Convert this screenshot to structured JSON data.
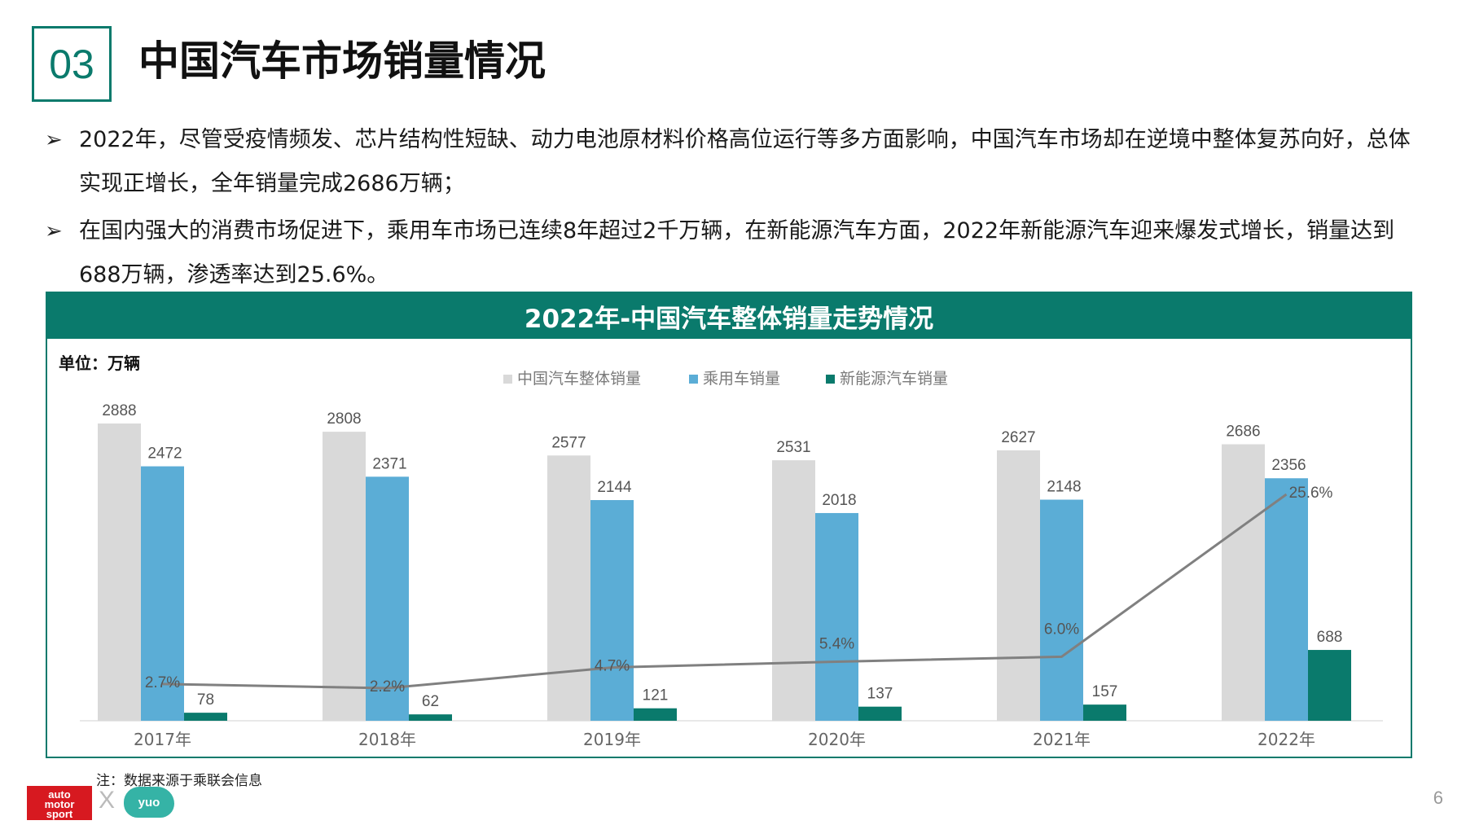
{
  "header": {
    "section_number": "03",
    "title": "中国汽车市场销量情况"
  },
  "bullets": [
    {
      "mark": "➢",
      "text": "2022年，尽管受疫情频发、芯片结构性短缺、动力电池原材料价格高位运行等多方面影响，中国汽车市场却在逆境中整体复苏向好，总体实现正增长，全年销量完成2686万辆；"
    },
    {
      "mark": "➢",
      "text": "在国内强大的消费市场促进下，乘用车市场已连续8年超过2千万辆，在新能源汽车方面，2022年新能源汽车迎来爆发式增长，销量达到688万辆，渗透率达到25.6%。"
    }
  ],
  "chart_title": "2022年-中国汽车整体销量走势情况",
  "unit": "单位：万辆",
  "note": "注：数据来源于乘联会信息",
  "logos": {
    "auto_motor_sport": "auto motor sport",
    "separator": "X",
    "partner": "yuo"
  },
  "page_number": "6",
  "colors": {
    "accent": "#0a7a6c",
    "total": "#d9d9d9",
    "passenger": "#5badd6",
    "nev": "#0a7a6c",
    "line": "#808080"
  },
  "chart_data": {
    "type": "bar",
    "categories": [
      "2017年",
      "2018年",
      "2019年",
      "2020年",
      "2021年",
      "2022年"
    ],
    "series": [
      {
        "name": "中国汽车整体销量",
        "values": [
          2888,
          2808,
          2577,
          2531,
          2627,
          2686
        ]
      },
      {
        "name": "乘用车销量",
        "values": [
          2472,
          2371,
          2144,
          2018,
          2148,
          2356
        ]
      },
      {
        "name": "新能源汽车销量",
        "values": [
          78,
          62,
          121,
          137,
          157,
          688
        ]
      }
    ],
    "line_series": {
      "type": "line",
      "values": [
        2.7,
        2.2,
        4.7,
        5.4,
        6.0,
        25.6
      ],
      "labels": [
        "2.7%",
        "2.2%",
        "4.7%",
        "5.4%",
        "6.0%",
        "25.6%"
      ]
    },
    "legend_position": "top-center",
    "grid": false
  }
}
